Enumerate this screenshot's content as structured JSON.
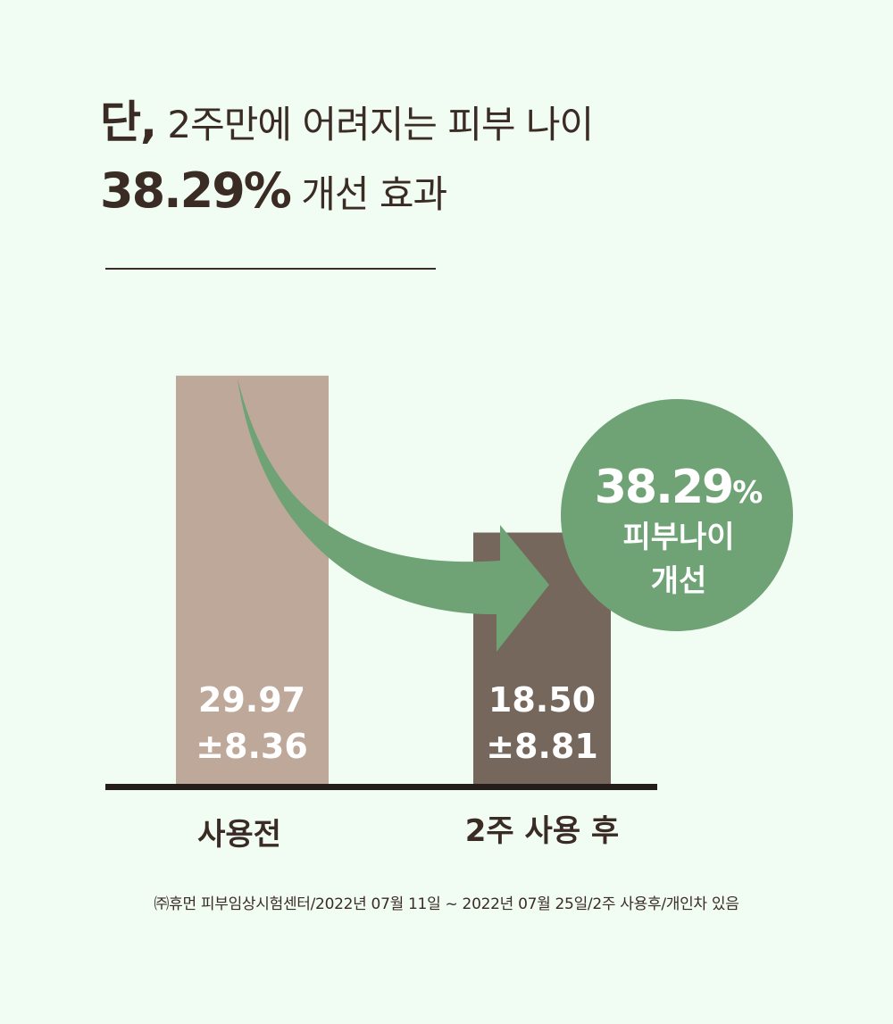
{
  "headline": {
    "line1_bold": "단,",
    "line1_rest": " 2주만에 어려지는 피부 나이",
    "line2_bold": "38.29%",
    "line2_rest": " 개선 효과"
  },
  "chart_data": {
    "type": "bar",
    "categories": [
      "사용전",
      "2주 사용 후"
    ],
    "values": [
      29.97,
      18.5
    ],
    "error": [
      8.36,
      8.81
    ],
    "value_labels": [
      {
        "main": "29.97",
        "sd": "±8.36"
      },
      {
        "main": "18.50",
        "sd": "±8.81"
      }
    ],
    "colors": [
      "#bea89a",
      "#75675b"
    ],
    "ylim": [
      0,
      31
    ],
    "grid": false,
    "annotation": {
      "percent_number": "38.29",
      "percent_sign": "%",
      "line1": "피부나이",
      "line2": "개선",
      "circle_color": "#6fa376",
      "arrow_color": "#6fa376"
    }
  },
  "footnote": "㈜휴먼 피부임상시험센터/2022년 07월 11일 ~ 2022년 07월 25일/2주 사용후/개인차 있음"
}
